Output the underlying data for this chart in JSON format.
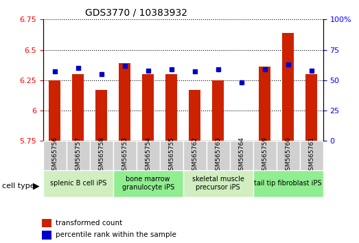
{
  "title": "GDS3770 / 10383932",
  "samples": [
    "GSM565756",
    "GSM565757",
    "GSM565758",
    "GSM565753",
    "GSM565754",
    "GSM565755",
    "GSM565762",
    "GSM565763",
    "GSM565764",
    "GSM565759",
    "GSM565760",
    "GSM565761"
  ],
  "transformed_counts": [
    6.25,
    6.3,
    6.17,
    6.39,
    6.3,
    6.3,
    6.17,
    6.25,
    5.75,
    6.36,
    6.64,
    6.3
  ],
  "percentile_ranks": [
    57,
    60,
    55,
    62,
    58,
    59,
    57,
    59,
    48,
    59,
    63,
    58
  ],
  "ylim_left": [
    5.75,
    6.75
  ],
  "ylim_right": [
    0,
    100
  ],
  "yticks_left": [
    5.75,
    6.0,
    6.25,
    6.5,
    6.75
  ],
  "yticks_right": [
    0,
    25,
    50,
    75,
    100
  ],
  "ytick_labels_left": [
    "5.75",
    "6",
    "6.25",
    "6.5",
    "6.75"
  ],
  "ytick_labels_right": [
    "0",
    "25",
    "50",
    "75",
    "100%"
  ],
  "bar_color": "#cc2200",
  "dot_color": "#0000cc",
  "bar_bottom": 5.75,
  "cell_groups": [
    {
      "label": "splenic B cell iPS",
      "indices": [
        0,
        1,
        2
      ],
      "color": "#d0eec0"
    },
    {
      "label": "bone marrow\ngranulocyte iPS",
      "indices": [
        3,
        4,
        5
      ],
      "color": "#90ee90"
    },
    {
      "label": "skeletal muscle\nprecursor iPS",
      "indices": [
        6,
        7,
        8
      ],
      "color": "#d0eec0"
    },
    {
      "label": "tail tip fibroblast iPS",
      "indices": [
        9,
        10,
        11
      ],
      "color": "#90ee90"
    }
  ],
  "cell_type_label": "cell type",
  "legend_items": [
    {
      "label": "transformed count",
      "color": "#cc2200"
    },
    {
      "label": "percentile rank within the sample",
      "color": "#0000cc"
    }
  ],
  "grid_color": "#000000",
  "grid_style": "dotted",
  "background_color": "#ffffff"
}
